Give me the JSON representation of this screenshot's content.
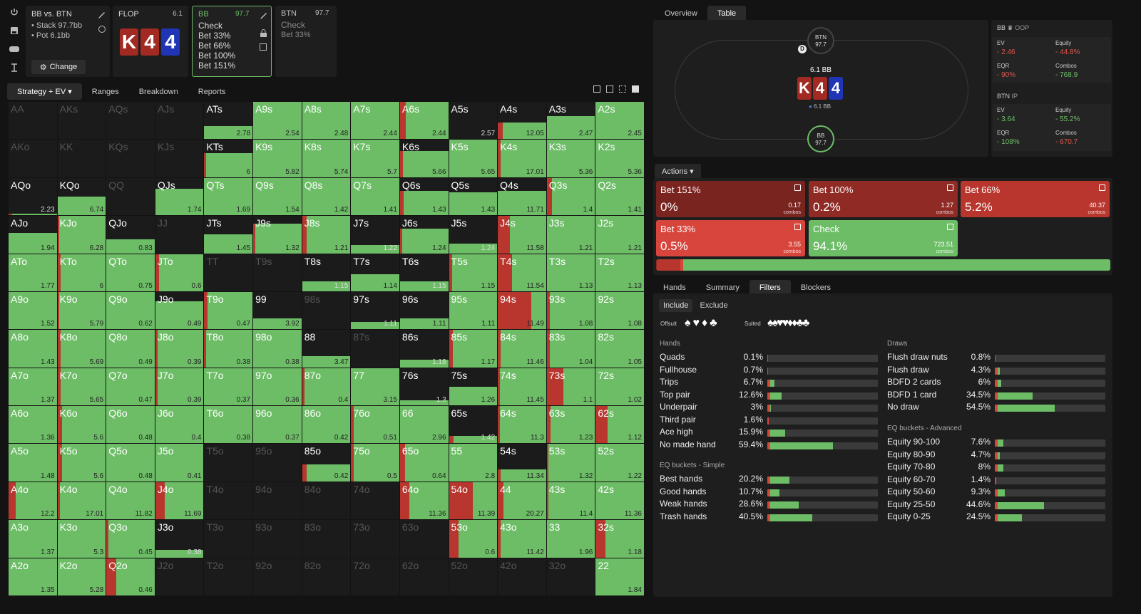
{
  "header": {
    "scenario": "BB vs. BTN",
    "stack": "Stack 97.7bb",
    "pot": "Pot 6.1bb",
    "change": "Change",
    "flop_label": "FLOP",
    "flop_value": "6.1",
    "board": [
      "K",
      "4",
      "4"
    ],
    "bb_node": {
      "pos": "BB",
      "stack": "97.7",
      "actions": [
        "Check",
        "Bet 33%",
        "Bet 66%",
        "Bet 100%",
        "Bet 151%"
      ]
    },
    "btn_node": {
      "pos": "BTN",
      "stack": "97.7",
      "actions": [
        "Check",
        "Bet 33%"
      ]
    }
  },
  "subtabs": [
    "Strategy + EV",
    "Ranges",
    "Breakdown",
    "Reports"
  ],
  "grid": [
    [
      "AA",
      "-",
      0,
      0,
      "dim"
    ],
    [
      "AKs",
      "-",
      0,
      0,
      "dim"
    ],
    [
      "AQs",
      "-",
      0,
      0,
      "dim"
    ],
    [
      "AJs",
      "-",
      0,
      0,
      "dim"
    ],
    [
      "ATs",
      "2.78",
      0.35,
      0,
      ""
    ],
    [
      "A9s",
      "2.54",
      1,
      0,
      ""
    ],
    [
      "A8s",
      "2.48",
      1,
      0,
      ""
    ],
    [
      "A7s",
      "2.44",
      1,
      0,
      ""
    ],
    [
      "A6s",
      "2.44",
      1,
      0.12,
      ""
    ],
    [
      "A5s",
      "2.57",
      0,
      0,
      "dark"
    ],
    [
      "A4s",
      "12.05",
      0.45,
      0.1,
      ""
    ],
    [
      "A3s",
      "2.47",
      0.62,
      0,
      ""
    ],
    [
      "A2s",
      "2.45",
      1,
      0,
      ""
    ],
    [
      "AKo",
      "-",
      0,
      0,
      "dim"
    ],
    [
      "KK",
      "-",
      0,
      0,
      "dim"
    ],
    [
      "KQs",
      "-",
      0,
      0,
      "dim"
    ],
    [
      "KJs",
      "-",
      0,
      0,
      "dim"
    ],
    [
      "KTs",
      "6",
      0.65,
      0.04,
      ""
    ],
    [
      "K9s",
      "5.82",
      1,
      0,
      ""
    ],
    [
      "K8s",
      "5.74",
      1,
      0,
      ""
    ],
    [
      "K7s",
      "5.7",
      1,
      0,
      ""
    ],
    [
      "K6s",
      "5.66",
      0.7,
      0.06,
      ""
    ],
    [
      "K5s",
      "5.65",
      1,
      0,
      ""
    ],
    [
      "K4s",
      "17.01",
      1,
      0.05,
      ""
    ],
    [
      "K3s",
      "5.36",
      1,
      0,
      ""
    ],
    [
      "K2s",
      "5.36",
      1,
      0,
      ""
    ],
    [
      "AQo",
      "2.23",
      0.04,
      0.08,
      "dark"
    ],
    [
      "KQo",
      "6.74",
      0.5,
      0,
      ""
    ],
    [
      "QQ",
      "-",
      0,
      0,
      "dim"
    ],
    [
      "QJs",
      "1.74",
      0.7,
      0,
      ""
    ],
    [
      "QTs",
      "1.69",
      1,
      0,
      ""
    ],
    [
      "Q9s",
      "1.54",
      1,
      0,
      ""
    ],
    [
      "Q8s",
      "1.42",
      1,
      0,
      ""
    ],
    [
      "Q7s",
      "1.41",
      1,
      0,
      ""
    ],
    [
      "Q6s",
      "1.43",
      0.65,
      0.08,
      ""
    ],
    [
      "Q5s",
      "1.43",
      0.62,
      0,
      ""
    ],
    [
      "Q4s",
      "11.71",
      0.65,
      0,
      ""
    ],
    [
      "Q3s",
      "1.4",
      1,
      0.1,
      ""
    ],
    [
      "Q2s",
      "1.41",
      1,
      0,
      ""
    ],
    [
      "AJo",
      "1.94",
      0.55,
      0,
      ""
    ],
    [
      "KJo",
      "6.28",
      1,
      0.03,
      ""
    ],
    [
      "QJo",
      "0.83",
      0.38,
      0,
      ""
    ],
    [
      "JJ",
      "-",
      0,
      0,
      "dim"
    ],
    [
      "JTs",
      "1.45",
      0.5,
      0,
      ""
    ],
    [
      "J9s",
      "1.32",
      0.8,
      0.04,
      ""
    ],
    [
      "J8s",
      "1.21",
      1,
      0.1,
      ""
    ],
    [
      "J7s",
      "1.22",
      0.22,
      0,
      ""
    ],
    [
      "J6s",
      "1.24",
      0.65,
      0.04,
      ""
    ],
    [
      "J5s",
      "1.24",
      0.25,
      0,
      ""
    ],
    [
      "J4s",
      "11.58",
      1,
      0.25,
      ""
    ],
    [
      "J3s",
      "1.21",
      1,
      0,
      ""
    ],
    [
      "J2s",
      "1.21",
      1,
      0,
      ""
    ],
    [
      "ATo",
      "1.77",
      1,
      0,
      ""
    ],
    [
      "KTo",
      "6",
      1,
      0.06,
      ""
    ],
    [
      "QTo",
      "0.75",
      1,
      0,
      ""
    ],
    [
      "JTo",
      "0.6",
      1,
      0.08,
      ""
    ],
    [
      "TT",
      "-",
      0,
      0,
      "dim"
    ],
    [
      "T9s",
      "-",
      0,
      0,
      "dim"
    ],
    [
      "T8s",
      "1.15",
      0.27,
      0,
      ""
    ],
    [
      "T7s",
      "1.14",
      0.45,
      0,
      ""
    ],
    [
      "T6s",
      "1.15",
      0.27,
      0,
      ""
    ],
    [
      "T5s",
      "1.15",
      1,
      0.06,
      ""
    ],
    [
      "T4s",
      "11.54",
      1,
      0.3,
      ""
    ],
    [
      "T3s",
      "1.13",
      1,
      0,
      ""
    ],
    [
      "T2s",
      "1.13",
      1,
      0,
      ""
    ],
    [
      "A9o",
      "1.52",
      1,
      0,
      ""
    ],
    [
      "K9o",
      "5.79",
      1,
      0.03,
      ""
    ],
    [
      "Q9o",
      "0.62",
      1,
      0,
      ""
    ],
    [
      "J9o",
      "0.49",
      0.75,
      0,
      ""
    ],
    [
      "T9o",
      "0.47",
      1,
      0.06,
      ""
    ],
    [
      "99",
      "3.92",
      0.3,
      0,
      ""
    ],
    [
      "98s",
      "-",
      0,
      0,
      "dim"
    ],
    [
      "97s",
      "1.11",
      0.2,
      0,
      ""
    ],
    [
      "96s",
      "1.11",
      0.3,
      0,
      ""
    ],
    [
      "95s",
      "1.11",
      1,
      0,
      ""
    ],
    [
      "94s",
      "11.49",
      1,
      0.7,
      ""
    ],
    [
      "93s",
      "1.08",
      1,
      0.06,
      ""
    ],
    [
      "92s",
      "1.08",
      1,
      0,
      ""
    ],
    [
      "A8o",
      "1.43",
      1,
      0,
      ""
    ],
    [
      "K8o",
      "5.69",
      1,
      0.06,
      ""
    ],
    [
      "Q8o",
      "0.49",
      1,
      0,
      ""
    ],
    [
      "J8o",
      "0.39",
      1,
      0.05,
      ""
    ],
    [
      "T8o",
      "0.38",
      1,
      0.04,
      ""
    ],
    [
      "98o",
      "0.38",
      1,
      0,
      ""
    ],
    [
      "88",
      "3.47",
      0.3,
      0,
      ""
    ],
    [
      "87s",
      "-",
      0,
      0,
      "dim"
    ],
    [
      "86s",
      "1.18",
      0.2,
      0,
      ""
    ],
    [
      "85s",
      "1.17",
      1,
      0.08,
      ""
    ],
    [
      "84s",
      "11.46",
      1,
      0.06,
      ""
    ],
    [
      "83s",
      "1.04",
      1,
      0.06,
      ""
    ],
    [
      "82s",
      "1.05",
      1,
      0,
      ""
    ],
    [
      "A7o",
      "1.37",
      1,
      0,
      ""
    ],
    [
      "K7o",
      "5.65",
      1,
      0.06,
      ""
    ],
    [
      "Q7o",
      "0.47",
      1,
      0,
      ""
    ],
    [
      "J7o",
      "0.39",
      1,
      0.05,
      ""
    ],
    [
      "T7o",
      "0.37",
      1,
      0,
      ""
    ],
    [
      "97o",
      "0.36",
      1,
      0,
      ""
    ],
    [
      "87o",
      "0.4",
      1,
      0.05,
      ""
    ],
    [
      "77",
      "3.15",
      1,
      0,
      ""
    ],
    [
      "76s",
      "1.3",
      0.13,
      0,
      ""
    ],
    [
      "75s",
      "1.26",
      0.5,
      0,
      ""
    ],
    [
      "74s",
      "11.45",
      1,
      0.04,
      ""
    ],
    [
      "73s",
      "1.1",
      1,
      0.35,
      ""
    ],
    [
      "72s",
      "1.02",
      1,
      0,
      ""
    ],
    [
      "A6o",
      "1.36",
      1,
      0,
      ""
    ],
    [
      "K6o",
      "5.6",
      1,
      0.1,
      ""
    ],
    [
      "Q6o",
      "0.48",
      1,
      0,
      ""
    ],
    [
      "J6o",
      "0.4",
      1,
      0,
      ""
    ],
    [
      "T6o",
      "0.38",
      1,
      0,
      ""
    ],
    [
      "96o",
      "0.37",
      1,
      0,
      ""
    ],
    [
      "86o",
      "0.42",
      1,
      0,
      ""
    ],
    [
      "76o",
      "0.51",
      1,
      0.05,
      ""
    ],
    [
      "66",
      "2.96",
      1,
      0,
      ""
    ],
    [
      "65s",
      "1.42",
      0.2,
      0.1,
      ""
    ],
    [
      "64s",
      "11.3",
      1,
      0.04,
      ""
    ],
    [
      "63s",
      "1.23",
      1,
      0.08,
      ""
    ],
    [
      "62s",
      "1.12",
      1,
      0.25,
      ""
    ],
    [
      "A5o",
      "1.48",
      1,
      0,
      ""
    ],
    [
      "K5o",
      "5.6",
      1,
      0.1,
      ""
    ],
    [
      "Q5o",
      "0.48",
      1,
      0,
      ""
    ],
    [
      "J5o",
      "0.41",
      1,
      0,
      ""
    ],
    [
      "T5o",
      "-",
      0,
      0,
      "dim"
    ],
    [
      "95o",
      "-",
      0,
      0,
      "dim"
    ],
    [
      "85o",
      "0.42",
      0.45,
      0.1,
      ""
    ],
    [
      "75o",
      "0.5",
      1,
      0.05,
      ""
    ],
    [
      "65o",
      "0.64",
      1,
      0.1,
      ""
    ],
    [
      "55",
      "2.8",
      1,
      0,
      ""
    ],
    [
      "54s",
      "11.34",
      0.33,
      0.05,
      ""
    ],
    [
      "53s",
      "1.32",
      1,
      0.04,
      ""
    ],
    [
      "52s",
      "1.22",
      1,
      0,
      ""
    ],
    [
      "A4o",
      "12.2",
      1,
      0.15,
      ""
    ],
    [
      "K4o",
      "17.01",
      1,
      0.05,
      ""
    ],
    [
      "Q4o",
      "11.82",
      1,
      0,
      ""
    ],
    [
      "J4o",
      "11.69",
      1,
      0.2,
      ""
    ],
    [
      "T4o",
      "-",
      0,
      0,
      "dim"
    ],
    [
      "94o",
      "-",
      0,
      0,
      "dim"
    ],
    [
      "84o",
      "-",
      0,
      0,
      "dim"
    ],
    [
      "74o",
      "-",
      0,
      0,
      "dim"
    ],
    [
      "64o",
      "11.36",
      1,
      0.2,
      ""
    ],
    [
      "54o",
      "11.39",
      1,
      0.5,
      ""
    ],
    [
      "44",
      "20.27",
      1,
      0.12,
      ""
    ],
    [
      "43s",
      "11.4",
      1,
      0.04,
      ""
    ],
    [
      "42s",
      "11.36",
      1,
      0,
      ""
    ],
    [
      "A3o",
      "1.37",
      1,
      0,
      ""
    ],
    [
      "K3o",
      "5.3",
      1,
      0,
      ""
    ],
    [
      "Q3o",
      "0.45",
      1,
      0.04,
      ""
    ],
    [
      "J3o",
      "0.38",
      0.2,
      0,
      ""
    ],
    [
      "T3o",
      "-",
      0,
      0,
      "dim"
    ],
    [
      "93o",
      "-",
      0,
      0,
      "dim"
    ],
    [
      "83o",
      "-",
      0,
      0,
      "dim"
    ],
    [
      "73o",
      "-",
      0,
      0,
      "dim"
    ],
    [
      "63o",
      "-",
      0,
      0,
      "dim"
    ],
    [
      "53o",
      "0.6",
      1,
      0.2,
      ""
    ],
    [
      "43o",
      "11.42",
      1,
      0.06,
      ""
    ],
    [
      "33",
      "1.96",
      1,
      0,
      ""
    ],
    [
      "32s",
      "1.18",
      1,
      0.2,
      ""
    ],
    [
      "A2o",
      "1.35",
      1,
      0,
      ""
    ],
    [
      "K2o",
      "5.28",
      1,
      0,
      ""
    ],
    [
      "Q2o",
      "0.46",
      1,
      0.2,
      ""
    ],
    [
      "J2o",
      "-",
      0,
      0,
      "dim"
    ],
    [
      "T2o",
      "-",
      0,
      0,
      "dim"
    ],
    [
      "92o",
      "-",
      0,
      0,
      "dim"
    ],
    [
      "82o",
      "-",
      0,
      0,
      "dim"
    ],
    [
      "72o",
      "-",
      0,
      0,
      "dim"
    ],
    [
      "62o",
      "-",
      0,
      0,
      "dim"
    ],
    [
      "52o",
      "-",
      0,
      0,
      "dim"
    ],
    [
      "42o",
      "-",
      0,
      0,
      "dim"
    ],
    [
      "32o",
      "-",
      0,
      0,
      "dim"
    ],
    [
      "22",
      "1.84",
      1,
      0,
      ""
    ]
  ],
  "right_tabs": [
    "Overview",
    "Table"
  ],
  "table": {
    "btn_label": "BTN",
    "btn_stack": "97.7",
    "bb_label": "BB",
    "bb_stack": "97.7",
    "pot": "6.1 BB",
    "dealer": "D",
    "chips": "6.1 BB"
  },
  "stats": {
    "oop_title": "BB",
    "oop_tag": "OOP",
    "ip_title": "BTN",
    "ip_tag": "IP",
    "oop": {
      "ev_l": "EV",
      "ev": "- 2.46",
      "eq_l": "Equity",
      "eq": "- 44.8%",
      "eqr_l": "EQR",
      "eqr": "- 90%",
      "co_l": "Combos",
      "co": "- 768.9"
    },
    "ip": {
      "ev_l": "EV",
      "ev": "- 3.64",
      "eq_l": "Equity",
      "eq": "- 55.2%",
      "eqr_l": "EQR",
      "eqr": "- 108%",
      "co_l": "Combos",
      "co": "- 670.7"
    }
  },
  "actions_label": "Actions",
  "actions": [
    {
      "name": "Bet 151%",
      "pct": "0%",
      "combos": "0.17",
      "cl": "combos",
      "color": "#7a2420"
    },
    {
      "name": "Bet 100%",
      "pct": "0.2%",
      "combos": "1.27",
      "cl": "combos",
      "color": "#8f2a24"
    },
    {
      "name": "Bet 66%",
      "pct": "5.2%",
      "combos": "40.37",
      "cl": "combos",
      "color": "#b8362e"
    },
    {
      "name": "Bet 33%",
      "pct": "0.5%",
      "combos": "3.55",
      "cl": "combos",
      "color": "#d8453c"
    },
    {
      "name": "Check",
      "pct": "94.1%",
      "combos": "723.51",
      "cl": "combos",
      "color": "#6dbd67"
    }
  ],
  "lower_tabs": [
    "Hands",
    "Summary",
    "Filters",
    "Blockers"
  ],
  "filters": {
    "include": "Include",
    "exclude": "Exclude",
    "offsuit": "Offsuit",
    "suited": "Suited",
    "hands_title": "Hands",
    "hands": [
      [
        "Quads",
        "0.1%",
        0.1
      ],
      [
        "Fullhouse",
        "0.7%",
        0.7
      ],
      [
        "Trips",
        "6.7%",
        6.7
      ],
      [
        "Top pair",
        "12.6%",
        12.6
      ],
      [
        "Underpair",
        "3%",
        3
      ],
      [
        "Third pair",
        "1.6%",
        1.6
      ],
      [
        "Ace high",
        "15.9%",
        15.9
      ],
      [
        "No made hand",
        "59.4%",
        59.4
      ]
    ],
    "eqs_title": "EQ buckets - Simple",
    "eqs": [
      [
        "Best hands",
        "20.2%",
        20.2
      ],
      [
        "Good hands",
        "10.7%",
        10.7
      ],
      [
        "Weak hands",
        "28.6%",
        28.6
      ],
      [
        "Trash hands",
        "40.5%",
        40.5
      ]
    ],
    "draws_title": "Draws",
    "draws": [
      [
        "Flush draw nuts",
        "0.8%",
        0.8
      ],
      [
        "Flush draw",
        "4.3%",
        4.3
      ],
      [
        "BDFD 2 cards",
        "6%",
        6
      ],
      [
        "BDFD 1 card",
        "34.5%",
        34.5
      ],
      [
        "No draw",
        "54.5%",
        54.5
      ]
    ],
    "eqa_title": "EQ buckets - Advanced",
    "eqa": [
      [
        "Equity 90-100",
        "7.6%",
        7.6
      ],
      [
        "Equity 80-90",
        "4.7%",
        4.7
      ],
      [
        "Equity 70-80",
        "8%",
        8
      ],
      [
        "Equity 60-70",
        "1.4%",
        1.4
      ],
      [
        "Equity 50-60",
        "9.3%",
        9.3
      ],
      [
        "Equity 25-50",
        "44.6%",
        44.6
      ],
      [
        "Equity 0-25",
        "24.5%",
        24.5
      ]
    ]
  },
  "colors": {
    "green": "#6dbd67",
    "red": "#b8362e"
  }
}
